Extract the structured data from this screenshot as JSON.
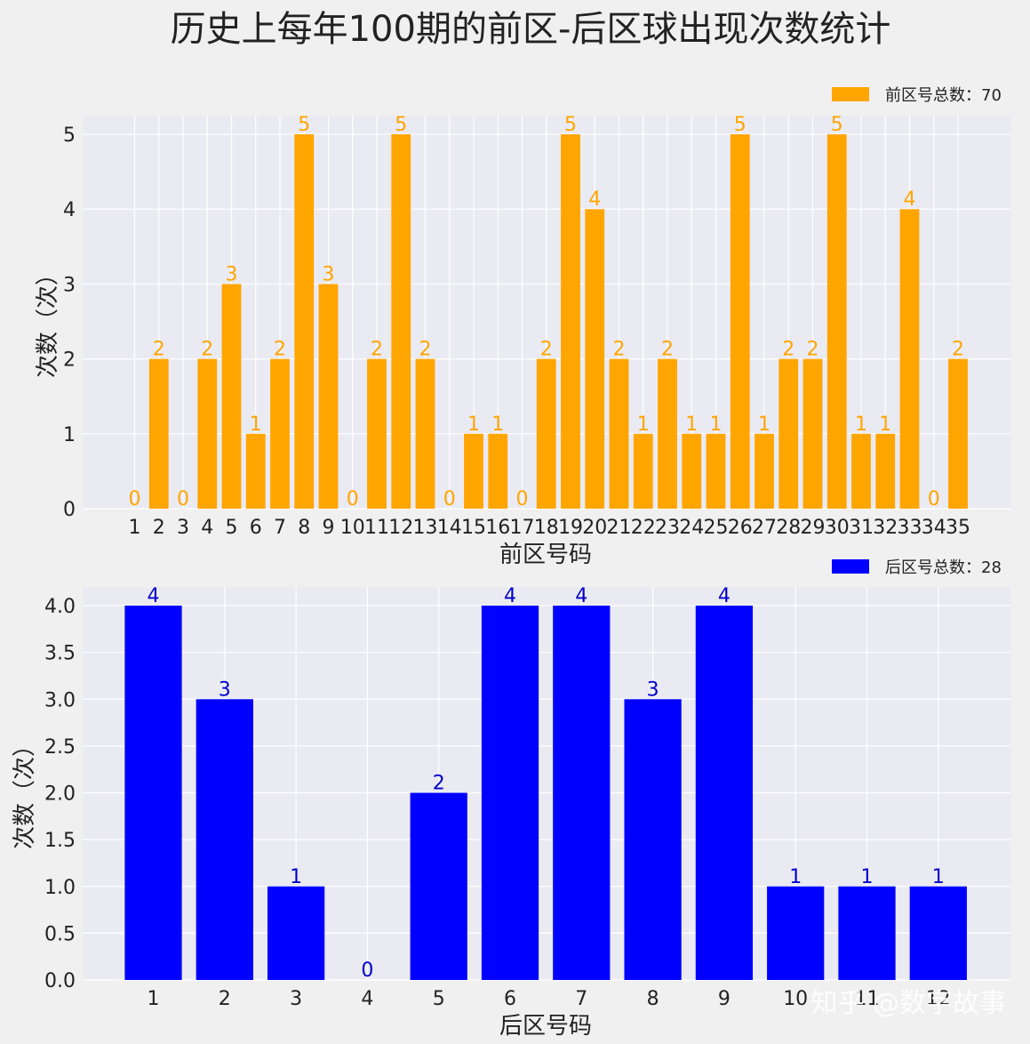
{
  "title": "历史上每年100期的前区-后区球出现次数统计",
  "watermark": "知乎 @数字故事",
  "colors": {
    "front": "#ffa500",
    "back": "#0000ff",
    "plot_bg": "#eaeaf2",
    "grid": "#ffffff"
  },
  "chart_data": [
    {
      "type": "bar",
      "xlabel": "前区号码",
      "ylabel": "次数（次）",
      "legend": "前区号总数：70",
      "legend_position": "upper-right",
      "ylim": [
        0,
        5.25
      ],
      "yticks": [
        "0",
        "1",
        "2",
        "3",
        "4",
        "5"
      ],
      "categories": [
        "1",
        "2",
        "3",
        "4",
        "5",
        "6",
        "7",
        "8",
        "9",
        "10",
        "11",
        "12",
        "13",
        "14",
        "15",
        "16",
        "17",
        "18",
        "19",
        "20",
        "21",
        "22",
        "23",
        "24",
        "25",
        "26",
        "27",
        "28",
        "29",
        "30",
        "31",
        "32",
        "33",
        "34",
        "35"
      ],
      "values": [
        0,
        2,
        0,
        2,
        3,
        1,
        2,
        5,
        3,
        0,
        2,
        5,
        2,
        0,
        1,
        1,
        0,
        2,
        5,
        4,
        2,
        1,
        2,
        1,
        1,
        5,
        1,
        2,
        2,
        5,
        1,
        1,
        4,
        0,
        2
      ],
      "grid": true
    },
    {
      "type": "bar",
      "xlabel": "后区号码",
      "ylabel": "次数（次）",
      "legend": "后区号总数：28",
      "legend_position": "upper-right",
      "ylim": [
        0,
        4.2
      ],
      "yticks": [
        "0.0",
        "0.5",
        "1.0",
        "1.5",
        "2.0",
        "2.5",
        "3.0",
        "3.5",
        "4.0"
      ],
      "categories": [
        "1",
        "2",
        "3",
        "4",
        "5",
        "6",
        "7",
        "8",
        "9",
        "10",
        "11",
        "12"
      ],
      "values": [
        4,
        3,
        1,
        0,
        2,
        4,
        4,
        3,
        4,
        1,
        1,
        1
      ],
      "grid": true
    }
  ]
}
